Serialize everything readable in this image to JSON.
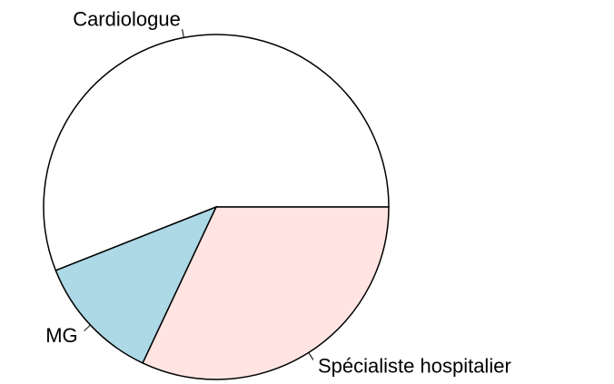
{
  "chart_data": {
    "type": "pie",
    "categories": [
      "Cardiologue",
      "MG",
      "Spécialiste hospitalier"
    ],
    "values": [
      56,
      12,
      32
    ],
    "colors": [
      "#ffffff",
      "#add8e6",
      "#ffe4e1"
    ]
  }
}
